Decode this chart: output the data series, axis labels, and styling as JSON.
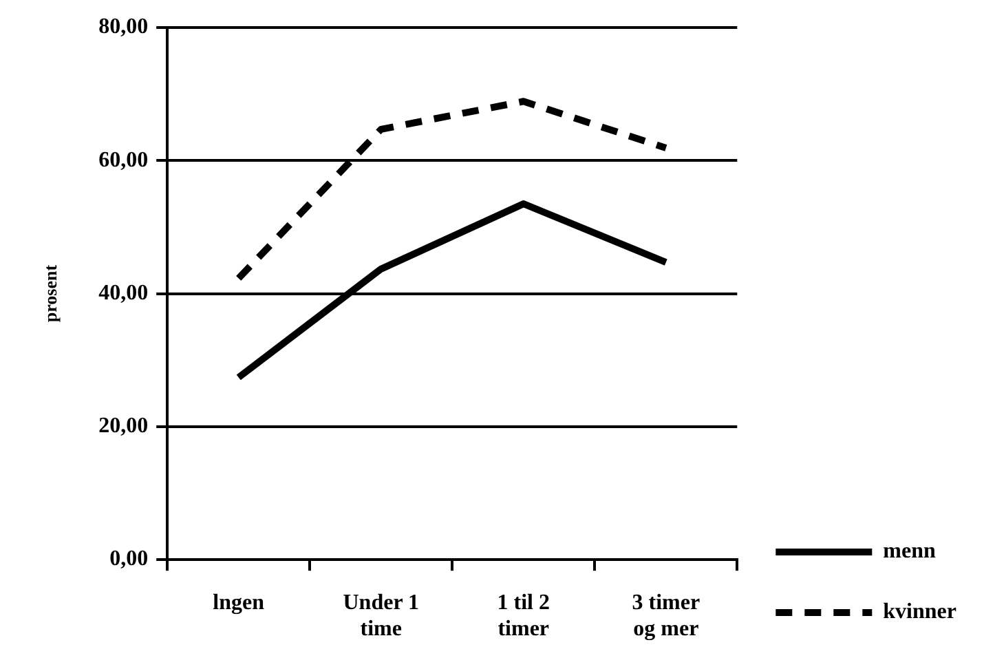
{
  "chart_data": {
    "type": "line",
    "ylabel": "prosent",
    "categories": [
      "lngen",
      "Under 1 time",
      "1 til 2 timer",
      "3 timer og mer"
    ],
    "series": [
      {
        "name": "menn",
        "color": "#000000",
        "line_style": "solid",
        "values": [
          27.4,
          43.7,
          53.5,
          44.7
        ]
      },
      {
        "name": "kvinner",
        "color": "#000000",
        "line_style": "dashed",
        "values": [
          42.3,
          64.7,
          68.9,
          61.9
        ]
      }
    ],
    "ylim": [
      0,
      80
    ],
    "yticks": [
      {
        "value": 0,
        "label": "0,00"
      },
      {
        "value": 20,
        "label": "20,00"
      },
      {
        "value": 40,
        "label": "40,00"
      },
      {
        "value": 60,
        "label": "60,00"
      },
      {
        "value": 80,
        "label": "80,00"
      }
    ],
    "grid": "y",
    "legend": "right",
    "marker": "none"
  }
}
